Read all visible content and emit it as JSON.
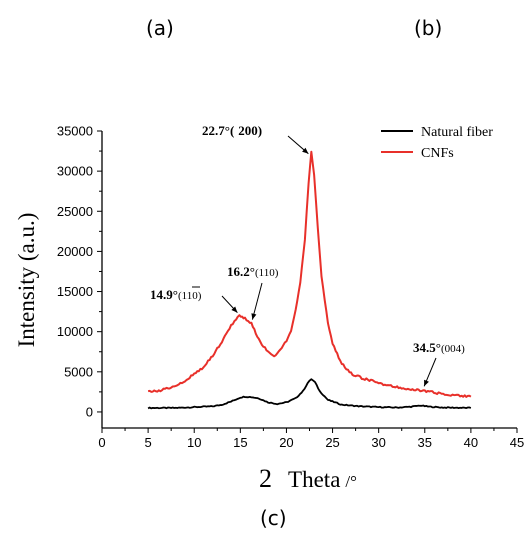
{
  "panel_labels": {
    "a": "(a)",
    "b": "(b)",
    "c": "(c)"
  },
  "chart_data": {
    "type": "line",
    "xlabel_main": "2",
    "xlabel_word": "Theta",
    "xlabel_unit": "/°",
    "ylabel": "Intensity (a.u.)",
    "xlim": [
      0,
      45
    ],
    "ylim": [
      -2000,
      35000
    ],
    "xticks": [
      0,
      5,
      10,
      15,
      20,
      25,
      30,
      35,
      40,
      45
    ],
    "yticks": [
      0,
      5000,
      10000,
      15000,
      20000,
      25000,
      30000,
      35000
    ],
    "grid": false,
    "legend_position": "top-right",
    "series": [
      {
        "name": "Natural fiber",
        "color": "#000000",
        "x": [
          5,
          8,
          10,
          12,
          13,
          14,
          15,
          15.5,
          16.2,
          17,
          18,
          19,
          20,
          21,
          21.8,
          22.3,
          22.7,
          23.1,
          23.6,
          24.5,
          26,
          28,
          30,
          32,
          33.5,
          34.5,
          35.5,
          37,
          40
        ],
        "y": [
          500,
          500,
          600,
          700,
          900,
          1300,
          1800,
          1900,
          1850,
          1700,
          1200,
          1000,
          1200,
          1700,
          2600,
          3600,
          4100,
          3700,
          2600,
          1500,
          900,
          700,
          600,
          550,
          650,
          800,
          650,
          550,
          500
        ]
      },
      {
        "name": "CNFs",
        "color": "#e8302a",
        "x": [
          5,
          6,
          7,
          8,
          9,
          10,
          11,
          12,
          13,
          14,
          14.9,
          15.5,
          16.2,
          17,
          18,
          18.5,
          19,
          20,
          20.5,
          21,
          21.5,
          22,
          22.4,
          22.7,
          23,
          23.4,
          23.8,
          24.5,
          25,
          26,
          27,
          28,
          30,
          32,
          34.5,
          36,
          38,
          40
        ],
        "y": [
          2500,
          2600,
          2900,
          3300,
          3900,
          4700,
          5600,
          7000,
          8800,
          10800,
          12000,
          11700,
          11000,
          9000,
          7400,
          7000,
          7200,
          8800,
          10000,
          12800,
          16000,
          21500,
          28500,
          32300,
          29500,
          23000,
          17000,
          11000,
          8500,
          6000,
          4800,
          4300,
          3600,
          3100,
          2700,
          2400,
          2100,
          1900
        ]
      }
    ],
    "annotations": [
      {
        "bold": "22.7°(",
        "rest": "200)",
        "point": [
          22.7,
          31800
        ]
      },
      {
        "bold": "16.2°",
        "rest": "(110)",
        "point": [
          16.2,
          11000
        ]
      },
      {
        "bold": "14.9°",
        "rest": "(110)",
        "overline": "1",
        "point": [
          14.9,
          12000
        ]
      },
      {
        "bold": "34.5°",
        "rest": "(004)",
        "point": [
          34.5,
          2700
        ]
      }
    ]
  }
}
